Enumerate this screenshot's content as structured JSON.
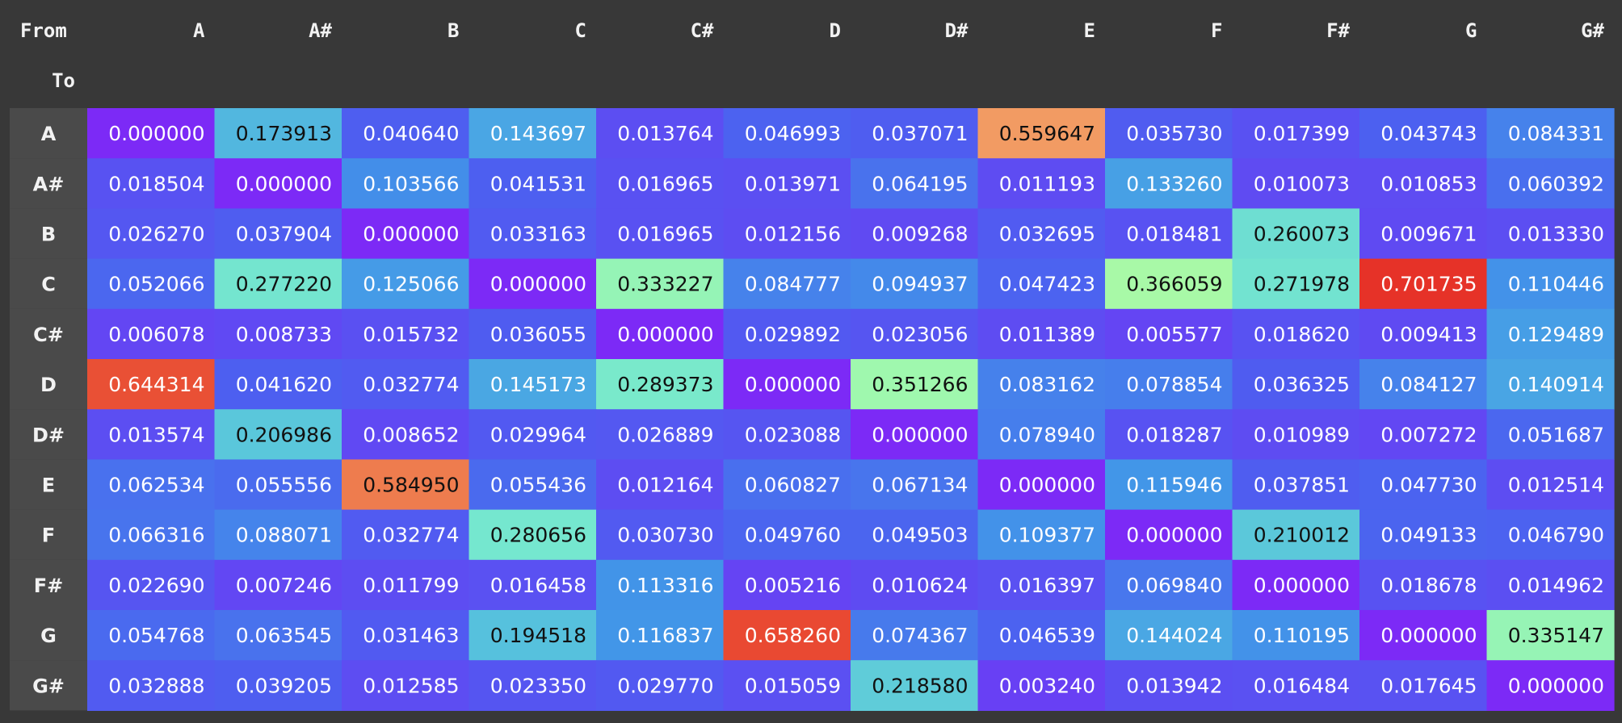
{
  "chart_data": {
    "type": "heatmap",
    "corner_header": "From",
    "row_axis_label": "To",
    "columns": [
      "A",
      "A#",
      "B",
      "C",
      "C#",
      "D",
      "D#",
      "E",
      "F",
      "F#",
      "G",
      "G#"
    ],
    "rows": [
      "A",
      "A#",
      "B",
      "C",
      "C#",
      "D",
      "D#",
      "E",
      "F",
      "F#",
      "G",
      "G#"
    ],
    "values": [
      [
        "0.000000",
        "0.173913",
        "0.040640",
        "0.143697",
        "0.013764",
        "0.046993",
        "0.037071",
        "0.559647",
        "0.035730",
        "0.017399",
        "0.043743",
        "0.084331"
      ],
      [
        "0.018504",
        "0.000000",
        "0.103566",
        "0.041531",
        "0.016965",
        "0.013971",
        "0.064195",
        "0.011193",
        "0.133260",
        "0.010073",
        "0.010853",
        "0.060392"
      ],
      [
        "0.026270",
        "0.037904",
        "0.000000",
        "0.033163",
        "0.016965",
        "0.012156",
        "0.009268",
        "0.032695",
        "0.018481",
        "0.260073",
        "0.009671",
        "0.013330"
      ],
      [
        "0.052066",
        "0.277220",
        "0.125066",
        "0.000000",
        "0.333227",
        "0.084777",
        "0.094937",
        "0.047423",
        "0.366059",
        "0.271978",
        "0.701735",
        "0.110446"
      ],
      [
        "0.006078",
        "0.008733",
        "0.015732",
        "0.036055",
        "0.000000",
        "0.029892",
        "0.023056",
        "0.011389",
        "0.005577",
        "0.018620",
        "0.009413",
        "0.129489"
      ],
      [
        "0.644314",
        "0.041620",
        "0.032774",
        "0.145173",
        "0.289373",
        "0.000000",
        "0.351266",
        "0.083162",
        "0.078854",
        "0.036325",
        "0.084127",
        "0.140914"
      ],
      [
        "0.013574",
        "0.206986",
        "0.008652",
        "0.029964",
        "0.026889",
        "0.023088",
        "0.000000",
        "0.078940",
        "0.018287",
        "0.010989",
        "0.007272",
        "0.051687"
      ],
      [
        "0.062534",
        "0.055556",
        "0.584950",
        "0.055436",
        "0.012164",
        "0.060827",
        "0.067134",
        "0.000000",
        "0.115946",
        "0.037851",
        "0.047730",
        "0.012514"
      ],
      [
        "0.066316",
        "0.088071",
        "0.032774",
        "0.280656",
        "0.030730",
        "0.049760",
        "0.049503",
        "0.109377",
        "0.000000",
        "0.210012",
        "0.049133",
        "0.046790"
      ],
      [
        "0.022690",
        "0.007246",
        "0.011799",
        "0.016458",
        "0.113316",
        "0.005216",
        "0.010624",
        "0.016397",
        "0.069840",
        "0.000000",
        "0.018678",
        "0.014962"
      ],
      [
        "0.054768",
        "0.063545",
        "0.031463",
        "0.194518",
        "0.116837",
        "0.658260",
        "0.074367",
        "0.046539",
        "0.144024",
        "0.110195",
        "0.000000",
        "0.335147"
      ],
      [
        "0.032888",
        "0.039205",
        "0.012585",
        "0.023350",
        "0.029770",
        "0.015059",
        "0.218580",
        "0.003240",
        "0.013942",
        "0.016484",
        "0.017645",
        "0.000000"
      ]
    ],
    "colormap": "rainbow",
    "colors": {
      "page_background": "#383838",
      "row_header_background": "#4a4a4a",
      "header_text": "#f2f2f2",
      "light_text": "#ffffff",
      "dark_text": "#111111"
    }
  }
}
